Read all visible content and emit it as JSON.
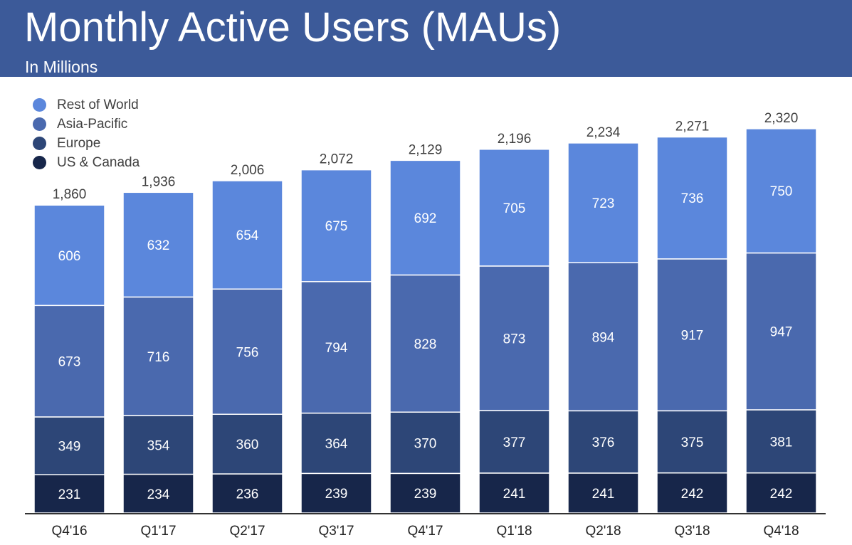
{
  "header": {
    "title": "Monthly Active Users (MAUs)",
    "subtitle": "In Millions"
  },
  "chart_data": {
    "type": "bar",
    "stacked": true,
    "title": "Monthly Active Users (MAUs)",
    "subtitle": "In Millions",
    "xlabel": "",
    "ylabel": "",
    "ylim": [
      0,
      2320
    ],
    "grid": false,
    "legend_position": "top-left",
    "categories": [
      "Q4'16",
      "Q1'17",
      "Q2'17",
      "Q3'17",
      "Q4'17",
      "Q1'18",
      "Q2'18",
      "Q3'18",
      "Q4'18"
    ],
    "series": [
      {
        "name": "US & Canada",
        "color": "#17264a",
        "values": [
          231,
          234,
          236,
          239,
          239,
          241,
          241,
          242,
          242
        ]
      },
      {
        "name": "Europe",
        "color": "#2d4677",
        "values": [
          349,
          354,
          360,
          364,
          370,
          377,
          376,
          375,
          381
        ]
      },
      {
        "name": "Asia-Pacific",
        "color": "#4a69ae",
        "values": [
          673,
          716,
          756,
          794,
          828,
          873,
          894,
          917,
          947
        ]
      },
      {
        "name": "Rest of World",
        "color": "#5b87dc",
        "values": [
          606,
          632,
          654,
          675,
          692,
          705,
          723,
          736,
          750
        ]
      }
    ],
    "totals": [
      "1,860",
      "1,936",
      "2,006",
      "2,072",
      "2,129",
      "2,196",
      "2,234",
      "2,271",
      "2,320"
    ]
  }
}
